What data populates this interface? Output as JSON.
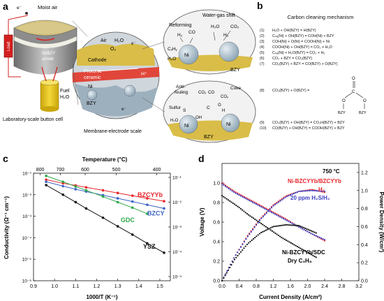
{
  "panel_a": {
    "letter": "a",
    "moist_air": "Moist air",
    "electron": "e⁻",
    "anode_label": "Ni/BZY",
    "anode_label2": "anode",
    "load": "Load",
    "fuel_label": "Fuel",
    "fuel_h2o": "H₂O",
    "button_cell": "Laboratory-scale button cell",
    "air": "Air",
    "h2o": "H₂O",
    "o2": "O₂",
    "cathode": "Cathode",
    "protonic1": "Protonic",
    "protonic2": "ceramic",
    "hplus": "H⁺",
    "ni": "Ni",
    "bzy": "BZY",
    "membrane_scale": "Membrane-electrode scale",
    "wgs": "Water-gas shift",
    "reforming": "Reforming",
    "co": "CO",
    "co2": "CO₂",
    "h2": "H₂",
    "cxhy": "CₓHᵧ",
    "antifouling1": "Anti-",
    "antifouling2": "fouling",
    "coke": "Coke",
    "sulfur": "Sulfur",
    "c": "C",
    "s": "S",
    "oh": "OH",
    "o": "O",
    "h": "H"
  },
  "panel_b": {
    "letter": "b",
    "title": "Carbon cleaning mechanism",
    "equations": [
      {
        "num": "(1)",
        "text": "H₂O + OH(BZY) = H(BZY)"
      },
      {
        "num": "(2)",
        "text": "Cₙₐ(Ni) + OH(BZY) = COH(Ni) + BZY"
      },
      {
        "num": "(3)",
        "text": "COH(Ni) + O(Ni) = COOH(Ni) + Ni"
      },
      {
        "num": "(4)",
        "text": "COOH(Ni) + OH(BZY) = CO₂ + H₂O"
      },
      {
        "num": "(5)",
        "text": "Cₙₐ(Ni) + H₂O(BZY) = CO₂ + H₂"
      },
      {
        "num": "(6)",
        "text": "CO₂ + BZY = CO₂(BZY)"
      },
      {
        "num": "(7)",
        "text": "CO₂(BZY) + BZY = CO(BZY) + O(BZY)"
      },
      {
        "num": "(8)",
        "text": "CO₂(BZY) + O(BZY) ="
      },
      {
        "num": "(9)",
        "text": "CO₃(BZY) + OH(BZY) = CO₃H(BZY) + BZY"
      },
      {
        "num": "(10)",
        "text": "CO(BZY) + OH(BZY) = COOH(BZY) + BZY"
      }
    ],
    "carbonate_c": "C",
    "carbonate_o": "O",
    "carbonate_bzy": "BZY"
  },
  "chart_c_letter": "c",
  "chart_d_letter": "d",
  "chart_data": [
    {
      "type": "line",
      "title": "",
      "xlabel": "1000/T (K⁻¹)",
      "ylabel": "Conductivity (Ω⁻¹ cm⁻¹)",
      "top_axis_label": "Temperature (°C)",
      "top_ticks": [
        800,
        700,
        600,
        500,
        400
      ],
      "xlim": [
        0.9,
        1.55
      ],
      "ylim": [
        1e-06,
        0.1
      ],
      "y_scale": "log",
      "x_ticks": [
        0.9,
        1.0,
        1.1,
        1.2,
        1.3,
        1.4,
        1.5
      ],
      "y_ticks": [
        "10⁻¹",
        "10⁻²",
        "10⁻³",
        "10⁻⁴",
        "10⁻⁵",
        "10⁻⁶"
      ],
      "y_ticks_right": [
        "10⁻¹",
        "10⁻²",
        "10⁻³",
        "10⁻⁴",
        "10⁻⁵"
      ],
      "series": [
        {
          "name": "BZCYYb",
          "color": "#e8252a",
          "x": [
            0.96,
            1.04,
            1.1,
            1.15,
            1.23,
            1.3,
            1.37,
            1.44,
            1.52
          ],
          "y": [
            0.05,
            0.034,
            0.027,
            0.022,
            0.016,
            0.012,
            0.009,
            0.0068,
            0.005
          ]
        },
        {
          "name": "BZCY",
          "color": "#3b63c4",
          "x": [
            0.96,
            1.04,
            1.1,
            1.15,
            1.23,
            1.3,
            1.37,
            1.44,
            1.52
          ],
          "y": [
            0.04,
            0.025,
            0.018,
            0.014,
            0.0095,
            0.0068,
            0.0048,
            0.0034,
            0.0023
          ]
        },
        {
          "name": "GDC",
          "color": "#2fa84a",
          "x": [
            0.96,
            1.04,
            1.1,
            1.15,
            1.23,
            1.3,
            1.37,
            1.44
          ],
          "y": [
            0.075,
            0.04,
            0.024,
            0.016,
            0.0082,
            0.0045,
            0.0025,
            0.0013
          ]
        },
        {
          "name": "YSZ",
          "color": "#111111",
          "x": [
            0.96,
            1.04,
            1.1,
            1.15,
            1.23,
            1.3,
            1.37,
            1.44,
            1.52
          ],
          "y": [
            0.028,
            0.01,
            0.0045,
            0.0023,
            0.00085,
            0.00034,
            0.00014,
            5.5e-05,
            2e-05
          ]
        }
      ]
    },
    {
      "type": "line",
      "title": "",
      "xlabel": "Current Density (A/cm²)",
      "ylabel": "Voltage (V)",
      "y2label": "Power Density (W/cm²)",
      "annotation": "750 °C",
      "xlim": [
        0,
        3.2
      ],
      "ylim": [
        0,
        1.2
      ],
      "y2lim": [
        0,
        1.3
      ],
      "x_ticks": [
        0.0,
        0.4,
        0.8,
        1.2,
        1.6,
        2.0,
        2.4,
        2.8,
        3.2
      ],
      "y_ticks": [
        0.0,
        0.2,
        0.4,
        0.6,
        0.8,
        1.0
      ],
      "y2_ticks": [
        0.0,
        0.2,
        0.4,
        0.6,
        0.8,
        1.0,
        1.2
      ],
      "series": [
        {
          "name": "Ni-BZCYYb/BZCYYb H₂",
          "color": "#e8252a",
          "axis": "voltage",
          "x": [
            0,
            0.1,
            0.3,
            0.6,
            0.9,
            1.2,
            1.5,
            1.8,
            2.1,
            2.4
          ],
          "y": [
            1.0,
            0.97,
            0.91,
            0.84,
            0.77,
            0.7,
            0.63,
            0.55,
            0.48,
            0.41
          ]
        },
        {
          "name": "Ni-BZCYYb/BZCYYb H₂ power",
          "color": "#e8252a",
          "axis": "power",
          "x": [
            0,
            0.3,
            0.6,
            0.9,
            1.2,
            1.5,
            1.8,
            2.1,
            2.4
          ],
          "y": [
            0,
            0.27,
            0.5,
            0.69,
            0.84,
            0.94,
            0.99,
            1.01,
            0.98
          ]
        },
        {
          "name": "20 ppm H₂S/H₂",
          "color": "#3b3fc0",
          "axis": "voltage",
          "x": [
            0,
            0.1,
            0.3,
            0.6,
            0.9,
            1.2,
            1.5,
            1.8,
            2.1,
            2.4
          ],
          "y": [
            0.99,
            0.96,
            0.9,
            0.83,
            0.76,
            0.69,
            0.62,
            0.55,
            0.48,
            0.42
          ]
        },
        {
          "name": "20 ppm H₂S/H₂ power",
          "color": "#3b3fc0",
          "axis": "power",
          "x": [
            0,
            0.3,
            0.6,
            0.9,
            1.2,
            1.5,
            1.8,
            2.1,
            2.4
          ],
          "y": [
            0,
            0.27,
            0.49,
            0.68,
            0.83,
            0.93,
            0.99,
            1.0,
            0.99
          ]
        },
        {
          "name": "Ni-BZCYYb/SDC Dry C₃H₈",
          "color": "#111111",
          "axis": "voltage",
          "x": [
            0,
            0.2,
            0.4,
            0.6,
            0.8,
            1.0,
            1.2,
            1.4,
            1.6,
            1.8,
            2.0,
            2.2
          ],
          "y": [
            0.87,
            0.81,
            0.75,
            0.68,
            0.62,
            0.56,
            0.5,
            0.44,
            0.39,
            0.34,
            0.29,
            0.24
          ]
        },
        {
          "name": "Ni-BZCYYb/SDC Dry C₃H₈ power",
          "color": "#111111",
          "axis": "power",
          "x": [
            0,
            0.3,
            0.6,
            0.9,
            1.2,
            1.5,
            1.8,
            2.1,
            2.2
          ],
          "y": [
            0,
            0.24,
            0.41,
            0.53,
            0.6,
            0.62,
            0.61,
            0.55,
            0.53
          ]
        }
      ],
      "legend_labels": [
        "Ni-BZCYYb/BZCYYb",
        "H₂",
        "20 ppm H₂S/H₂",
        "Ni-BZCYYb/SDC",
        "Dry C₃H₈"
      ]
    }
  ]
}
